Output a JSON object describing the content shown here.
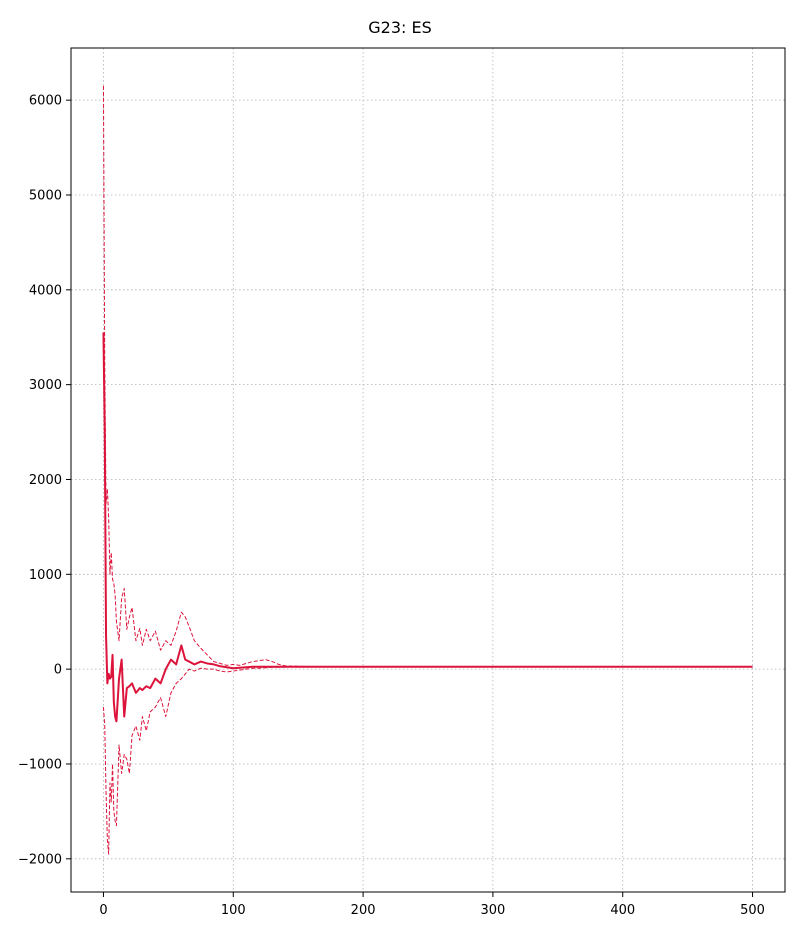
{
  "chart_data": {
    "type": "line",
    "title": "G23: ES",
    "xlabel": "",
    "ylabel": "",
    "xlim": [
      -25,
      525
    ],
    "ylim": [
      -2350,
      6550
    ],
    "xticks": [
      0,
      100,
      200,
      300,
      400,
      500
    ],
    "yticks": [
      -2000,
      -1000,
      0,
      1000,
      2000,
      3000,
      4000,
      5000,
      6000
    ],
    "xtick_labels": [
      "0",
      "100",
      "200",
      "300",
      "400",
      "500"
    ],
    "ytick_labels": [
      "−2000",
      "−1000",
      "0",
      "1000",
      "2000",
      "3000",
      "4000",
      "5000",
      "6000"
    ],
    "grid": true,
    "color": "#dc143c",
    "series": [
      {
        "style": "dashed",
        "role": "upper",
        "x": [
          0,
          1,
          2,
          3,
          4,
          5,
          6,
          7,
          8,
          9,
          10,
          12,
          14,
          16,
          18,
          20,
          22,
          25,
          28,
          30,
          33,
          36,
          40,
          44,
          48,
          52,
          56,
          60,
          63,
          66,
          70,
          75,
          80,
          85,
          90,
          95,
          100,
          105,
          110,
          115,
          120,
          125,
          130,
          135,
          140,
          150,
          160,
          170,
          200,
          300,
          400,
          500
        ],
        "y": [
          6150,
          3200,
          1750,
          1900,
          1600,
          1000,
          1230,
          950,
          900,
          780,
          500,
          300,
          750,
          850,
          420,
          550,
          650,
          300,
          430,
          250,
          420,
          300,
          400,
          200,
          300,
          250,
          400,
          600,
          550,
          450,
          300,
          220,
          150,
          80,
          60,
          40,
          50,
          40,
          60,
          80,
          90,
          100,
          80,
          50,
          35,
          30,
          28,
          25,
          25,
          25,
          25,
          25
        ]
      },
      {
        "style": "solid",
        "role": "mean",
        "x": [
          0,
          1,
          2,
          3,
          4,
          5,
          6,
          7,
          8,
          9,
          10,
          12,
          14,
          16,
          18,
          20,
          22,
          25,
          28,
          30,
          33,
          36,
          40,
          44,
          48,
          52,
          56,
          60,
          63,
          66,
          70,
          75,
          80,
          85,
          90,
          95,
          100,
          105,
          110,
          115,
          120,
          125,
          130,
          135,
          140,
          150,
          160,
          170,
          200,
          300,
          400,
          500
        ],
        "y": [
          3550,
          2500,
          350,
          -150,
          -50,
          -100,
          -80,
          150,
          -350,
          -500,
          -550,
          -100,
          100,
          -500,
          -200,
          -180,
          -150,
          -250,
          -200,
          -220,
          -180,
          -200,
          -100,
          -150,
          0,
          100,
          50,
          250,
          100,
          80,
          50,
          80,
          60,
          50,
          30,
          20,
          10,
          15,
          20,
          25,
          25,
          25,
          25,
          25,
          25,
          25,
          25,
          25,
          25,
          25,
          25,
          25
        ]
      },
      {
        "style": "dashed",
        "role": "lower",
        "x": [
          0,
          1,
          2,
          3,
          4,
          5,
          6,
          7,
          8,
          9,
          10,
          12,
          14,
          16,
          18,
          20,
          22,
          25,
          28,
          30,
          33,
          36,
          40,
          44,
          48,
          52,
          56,
          60,
          63,
          66,
          70,
          75,
          80,
          85,
          90,
          95,
          100,
          105,
          110,
          115,
          120,
          125,
          130,
          135,
          140,
          150,
          160,
          170,
          200,
          300,
          400,
          500
        ],
        "y": [
          -400,
          -600,
          -1300,
          -1800,
          -1950,
          -1200,
          -1400,
          -1000,
          -1500,
          -1600,
          -1650,
          -800,
          -1100,
          -900,
          -950,
          -1100,
          -700,
          -600,
          -750,
          -500,
          -650,
          -450,
          -400,
          -300,
          -500,
          -250,
          -150,
          -100,
          -50,
          0,
          -20,
          10,
          0,
          0,
          -20,
          -30,
          -20,
          -10,
          0,
          10,
          10,
          15,
          20,
          20,
          22,
          22,
          22,
          22,
          22,
          22,
          22,
          22
        ]
      }
    ]
  }
}
